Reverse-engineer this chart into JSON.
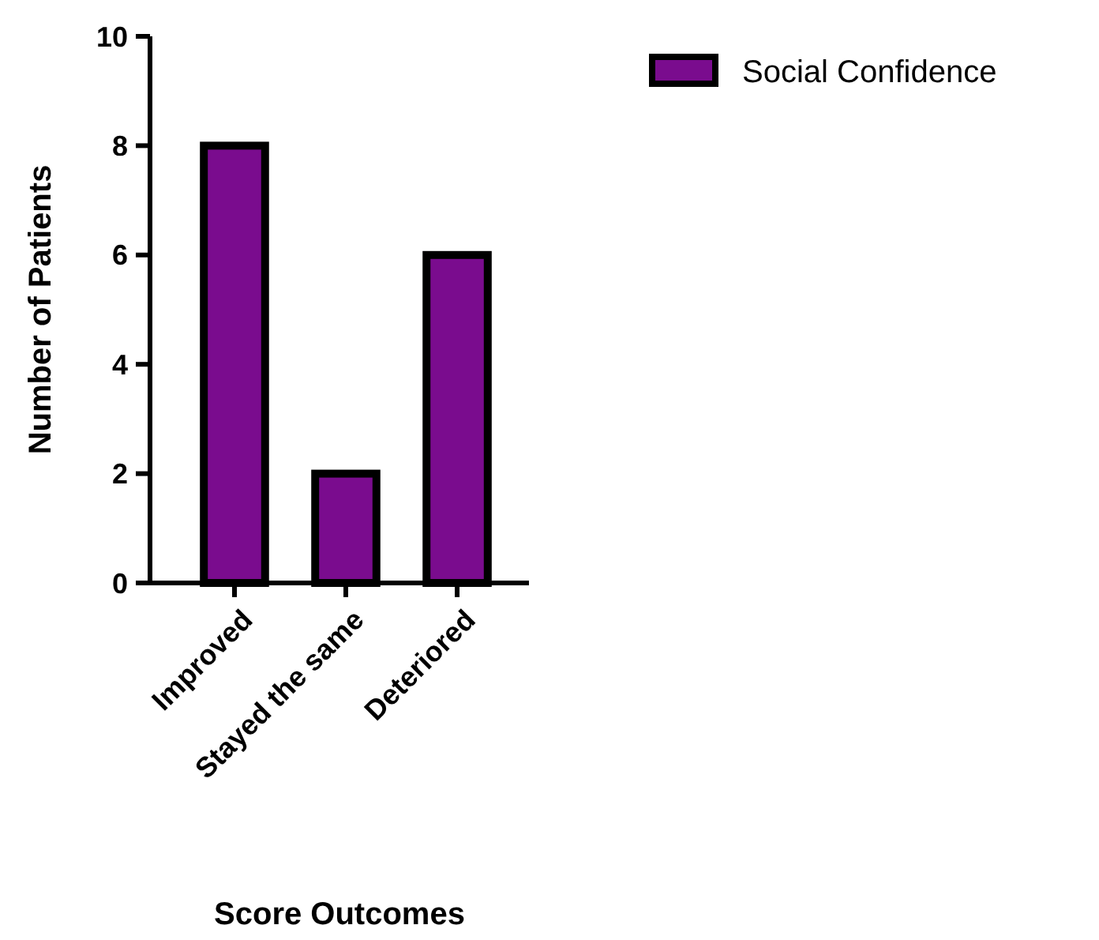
{
  "chart_data": {
    "type": "bar",
    "xlabel": "Score Outcomes",
    "ylabel": "Number of Patients",
    "categories": [
      "Improved",
      "Stayed the same",
      "Deteriored"
    ],
    "series": [
      {
        "name": "Social Confidence",
        "color": "#7a0c8e",
        "values": [
          8,
          2,
          6
        ]
      }
    ],
    "ylim": [
      0,
      10
    ],
    "yticks": [
      0,
      2,
      4,
      6,
      8,
      10
    ],
    "grid": false,
    "legend": "top right"
  }
}
